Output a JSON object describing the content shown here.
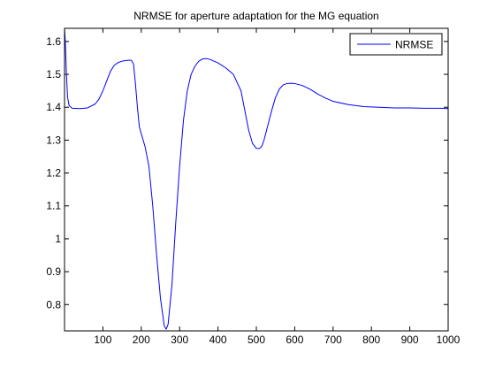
{
  "chart_data": {
    "type": "line",
    "title": "NRMSE for aperture adaptation for the MG equation",
    "xlabel": "",
    "ylabel": "",
    "xlim": [
      0,
      1000
    ],
    "ylim": [
      0.72,
      1.64
    ],
    "xticks": [
      100,
      200,
      300,
      400,
      500,
      600,
      700,
      800,
      900,
      1000
    ],
    "yticks": [
      0.8,
      0.9,
      1.0,
      1.1,
      1.2,
      1.3,
      1.4,
      1.5,
      1.6
    ],
    "ytick_labels": [
      "0.8",
      "0.9",
      "1",
      "1.1",
      "1.2",
      "1.3",
      "1.4",
      "1.5",
      "1.6"
    ],
    "grid": false,
    "legend": {
      "placement": "top-right",
      "entries": [
        "NRMSE"
      ]
    },
    "series": [
      {
        "name": "NRMSE",
        "color": "#0000ff",
        "x": [
          0,
          2,
          5,
          8,
          12,
          20,
          40,
          60,
          80,
          90,
          100,
          110,
          120,
          130,
          140,
          150,
          160,
          170,
          175,
          180,
          185,
          190,
          195,
          200,
          210,
          220,
          230,
          240,
          250,
          260,
          265,
          270,
          280,
          290,
          300,
          310,
          320,
          330,
          340,
          350,
          360,
          370,
          380,
          390,
          400,
          420,
          440,
          460,
          470,
          480,
          490,
          500,
          505,
          510,
          515,
          520,
          530,
          540,
          550,
          560,
          570,
          580,
          590,
          600,
          620,
          640,
          660,
          680,
          700,
          740,
          780,
          820,
          860,
          900,
          940,
          980,
          1000
        ],
        "y": [
          1.64,
          1.6,
          1.5,
          1.43,
          1.405,
          1.397,
          1.396,
          1.398,
          1.41,
          1.425,
          1.45,
          1.48,
          1.51,
          1.528,
          1.536,
          1.54,
          1.542,
          1.543,
          1.542,
          1.53,
          1.47,
          1.4,
          1.34,
          1.32,
          1.28,
          1.22,
          1.1,
          0.95,
          0.82,
          0.735,
          0.725,
          0.74,
          0.86,
          1.05,
          1.22,
          1.36,
          1.45,
          1.5,
          1.525,
          1.54,
          1.547,
          1.548,
          1.545,
          1.54,
          1.535,
          1.52,
          1.5,
          1.45,
          1.39,
          1.33,
          1.29,
          1.275,
          1.274,
          1.276,
          1.283,
          1.3,
          1.345,
          1.39,
          1.43,
          1.455,
          1.468,
          1.472,
          1.473,
          1.472,
          1.466,
          1.455,
          1.44,
          1.428,
          1.418,
          1.408,
          1.402,
          1.4,
          1.398,
          1.398,
          1.397,
          1.397,
          1.396
        ]
      }
    ]
  }
}
